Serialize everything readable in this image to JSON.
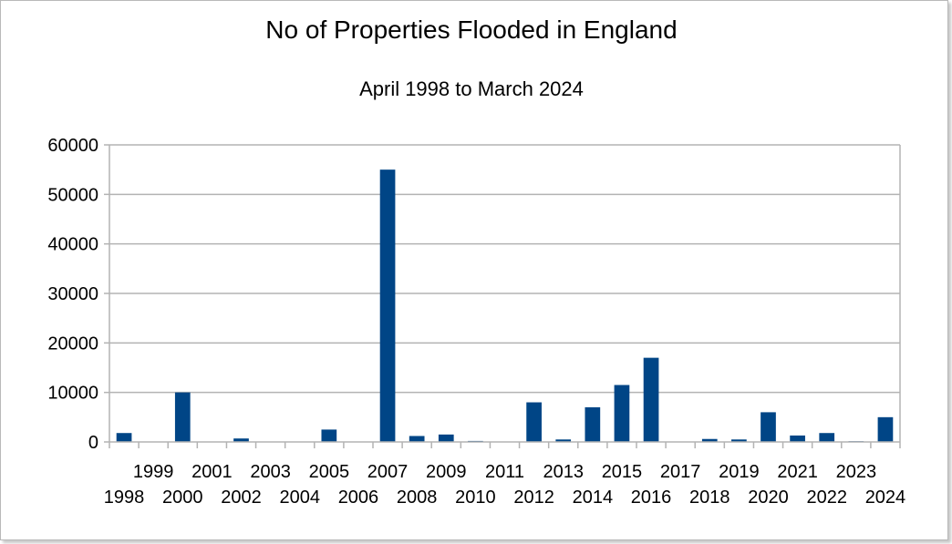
{
  "chart_data": {
    "type": "bar",
    "title": "No of Properties Flooded in England",
    "subtitle": "April 1998 to March 2024",
    "xlabel": "",
    "ylabel": "",
    "ylim": [
      0,
      60000
    ],
    "yticks": [
      0,
      10000,
      20000,
      30000,
      40000,
      50000,
      60000
    ],
    "grid": true,
    "legend": "none",
    "bar_color": "#004586",
    "categories": [
      "1998",
      "1999",
      "2000",
      "2001",
      "2002",
      "2003",
      "2004",
      "2005",
      "2006",
      "2007",
      "2008",
      "2009",
      "2010",
      "2011",
      "2012",
      "2013",
      "2014",
      "2015",
      "2016",
      "2017",
      "2018",
      "2019",
      "2020",
      "2021",
      "2022",
      "2023",
      "2024"
    ],
    "values": [
      1800,
      0,
      10000,
      0,
      700,
      0,
      0,
      2500,
      0,
      55000,
      1200,
      1500,
      200,
      0,
      8000,
      500,
      7000,
      11500,
      17000,
      0,
      600,
      500,
      6000,
      1300,
      1800,
      150,
      5000
    ]
  }
}
